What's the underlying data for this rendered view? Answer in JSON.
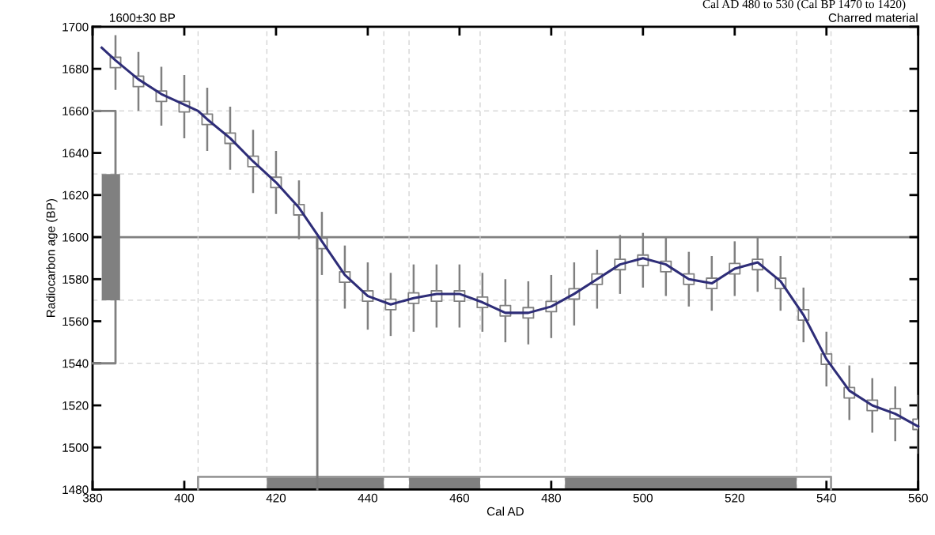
{
  "chart_data": {
    "type": "line",
    "xlabel": "Cal AD",
    "ylabel": "Radiocarbon age (BP)",
    "annotations": [
      "1600±30 BP",
      "Cal AD 480 to 530 (Cal BP 1470 to 1420)",
      "Charred material"
    ],
    "xlim": [
      380,
      560
    ],
    "ylim": [
      1480,
      1700
    ],
    "xticks": [
      380,
      400,
      420,
      440,
      460,
      480,
      500,
      520,
      540,
      560
    ],
    "yticks": [
      1480,
      1500,
      1520,
      1540,
      1560,
      1580,
      1600,
      1620,
      1640,
      1660,
      1680,
      1700
    ],
    "grid": false,
    "ref_lines": [
      {
        "axis": "y",
        "value": 1600,
        "color": "#808080",
        "line_style": "solid"
      },
      {
        "axis": "y",
        "value": 1660,
        "color": "#d0d0d0",
        "line_style": "dashed"
      },
      {
        "axis": "y",
        "value": 1630,
        "color": "#d0d0d0",
        "line_style": "dashed"
      },
      {
        "axis": "y",
        "value": 1570,
        "color": "#d0d0d0",
        "line_style": "dashed"
      },
      {
        "axis": "y",
        "value": 1540,
        "color": "#d0d0d0",
        "line_style": "dashed"
      },
      {
        "axis": "x",
        "value": 403,
        "color": "#d0d0d0",
        "line_style": "dashed"
      },
      {
        "axis": "x",
        "value": 418,
        "color": "#d0d0d0",
        "line_style": "dashed"
      },
      {
        "axis": "x",
        "value": 443.5,
        "color": "#d0d0d0",
        "line_style": "dashed"
      },
      {
        "axis": "x",
        "value": 449,
        "color": "#d0d0d0",
        "line_style": "dashed"
      },
      {
        "axis": "x",
        "value": 464.5,
        "color": "#d0d0d0",
        "line_style": "dashed"
      },
      {
        "axis": "x",
        "value": 483,
        "color": "#d0d0d0",
        "line_style": "dashed"
      },
      {
        "axis": "x",
        "value": 533.5,
        "color": "#d0d0d0",
        "line_style": "dashed"
      },
      {
        "axis": "x",
        "value": 541,
        "color": "#d0d0d0",
        "line_style": "dashed"
      }
    ],
    "series": [
      {
        "type": "bar",
        "color": "#808080",
        "x": [
          384
        ],
        "base": [
          1570
        ],
        "values": [
          60
        ]
      },
      {
        "type": "line",
        "color": "#808080",
        "x": [
          380,
          385,
          385,
          380
        ],
        "values": [
          1660,
          1660,
          1540,
          1540
        ]
      },
      {
        "type": "area",
        "color": "#808080",
        "x": [
          418,
          443.5
        ],
        "values": [
          1486,
          1486
        ]
      },
      {
        "type": "area",
        "color": "#808080",
        "x": [
          449,
          464.5
        ],
        "values": [
          1486,
          1486
        ]
      },
      {
        "type": "area",
        "color": "#808080",
        "x": [
          483,
          533.5
        ],
        "values": [
          1486,
          1486
        ]
      },
      {
        "type": "line",
        "color": "#999999",
        "x": [
          403,
          403,
          541,
          541
        ],
        "values": [
          1480,
          1486,
          1486,
          1480
        ]
      },
      {
        "type": "line",
        "color": "#7a7a7a",
        "x": [
          429,
          429
        ],
        "values": [
          1480,
          1600
        ]
      },
      {
        "type": "scatter",
        "color": "#808080",
        "marker": "square",
        "x": [
          385,
          390,
          395,
          400,
          405,
          410,
          415,
          420,
          425,
          430,
          435,
          440,
          445,
          450,
          455,
          460,
          465,
          470,
          475,
          480,
          485,
          490,
          495,
          500,
          505,
          510,
          515,
          520,
          525,
          530,
          535,
          540,
          545,
          550,
          555,
          560
        ],
        "values": [
          1683,
          1674,
          1667,
          1662,
          1656,
          1647,
          1636,
          1626,
          1613,
          1597,
          1581,
          1572,
          1568,
          1571,
          1572,
          1572,
          1569,
          1565,
          1564,
          1567,
          1573,
          1580,
          1587,
          1589,
          1586,
          1580,
          1578,
          1585,
          1587,
          1578,
          1563,
          1542,
          1526,
          1520,
          1516,
          1511
        ],
        "errors": [
          13,
          14,
          14,
          15,
          15,
          15,
          15,
          15,
          14,
          15,
          15,
          16,
          15,
          16,
          15,
          15,
          14,
          15,
          15,
          15,
          15,
          14,
          14,
          13,
          14,
          13,
          13,
          13,
          13,
          13,
          13,
          13,
          13,
          13,
          13,
          14
        ]
      },
      {
        "color": "#2e2d78",
        "marker": "none",
        "x": [
          382,
          385,
          390,
          395,
          400,
          403,
          405,
          410,
          415,
          420,
          425,
          430,
          435,
          440,
          445,
          450,
          455,
          460,
          465,
          470,
          475,
          480,
          485,
          490,
          495,
          500,
          505,
          510,
          515,
          520,
          525,
          530,
          535,
          540,
          545,
          550,
          555,
          560
        ],
        "values": [
          1690,
          1684,
          1675,
          1668,
          1663,
          1660,
          1656,
          1647,
          1636,
          1626,
          1614,
          1598,
          1582,
          1572,
          1568,
          1571,
          1573,
          1573,
          1569,
          1564,
          1564,
          1567,
          1573,
          1580,
          1587,
          1590,
          1587,
          1580,
          1578,
          1585,
          1588,
          1579,
          1563,
          1542,
          1527,
          1520,
          1516,
          1510
        ]
      }
    ]
  }
}
